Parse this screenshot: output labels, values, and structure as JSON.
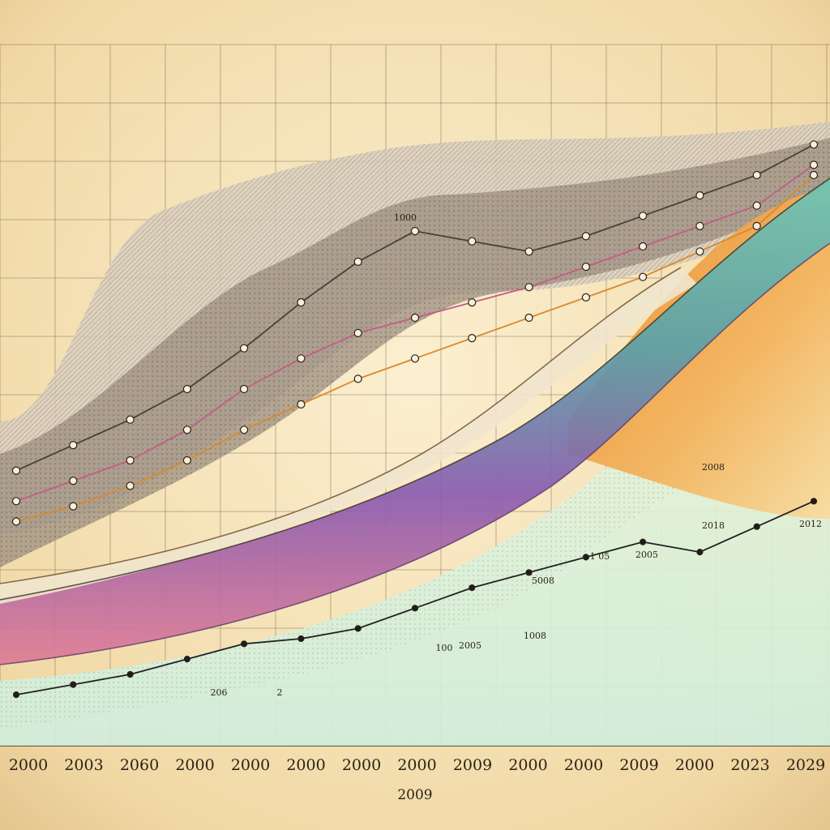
{
  "chart_data": {
    "type": "line",
    "title": "",
    "xlabel": "2009",
    "ylabel": "",
    "grid": true,
    "legend": "none",
    "x_tick_labels": [
      "2000",
      "2003",
      "2060",
      "2000",
      "2000",
      "2000",
      "2000",
      "2000",
      "2009",
      "2000",
      "2000",
      "2009",
      "2000",
      "2023",
      "2029"
    ],
    "annotations": [
      "1000",
      "2018",
      "2012",
      "2005",
      "1 05",
      "2008",
      "100",
      "2005",
      "1008",
      "5008",
      "206",
      "2"
    ],
    "band_colors": [
      "#8b5bb0",
      "#5bb5a2",
      "#e9a23a",
      "#e06f86",
      "#f0b45a"
    ],
    "series": [
      {
        "color": "#4a4036",
        "values": [
          14,
          19,
          24,
          30,
          38,
          47,
          55,
          61,
          59,
          57,
          60,
          64,
          68,
          72,
          78
        ]
      },
      {
        "color": "#c45b8a",
        "values": [
          8,
          12,
          16,
          22,
          30,
          36,
          41,
          44,
          47,
          50,
          54,
          58,
          62,
          66,
          74
        ]
      },
      {
        "color": "#d9892f",
        "values": [
          4,
          7,
          11,
          16,
          22,
          27,
          32,
          36,
          40,
          44,
          48,
          52,
          57,
          62,
          72
        ]
      },
      {
        "color": "#222222",
        "values": [
          -30,
          -28,
          -26,
          -23,
          -20,
          -19,
          -17,
          -13,
          -9,
          -6,
          -3,
          0,
          -2,
          3,
          8
        ]
      }
    ],
    "ylim": [
      -40,
      100
    ]
  }
}
